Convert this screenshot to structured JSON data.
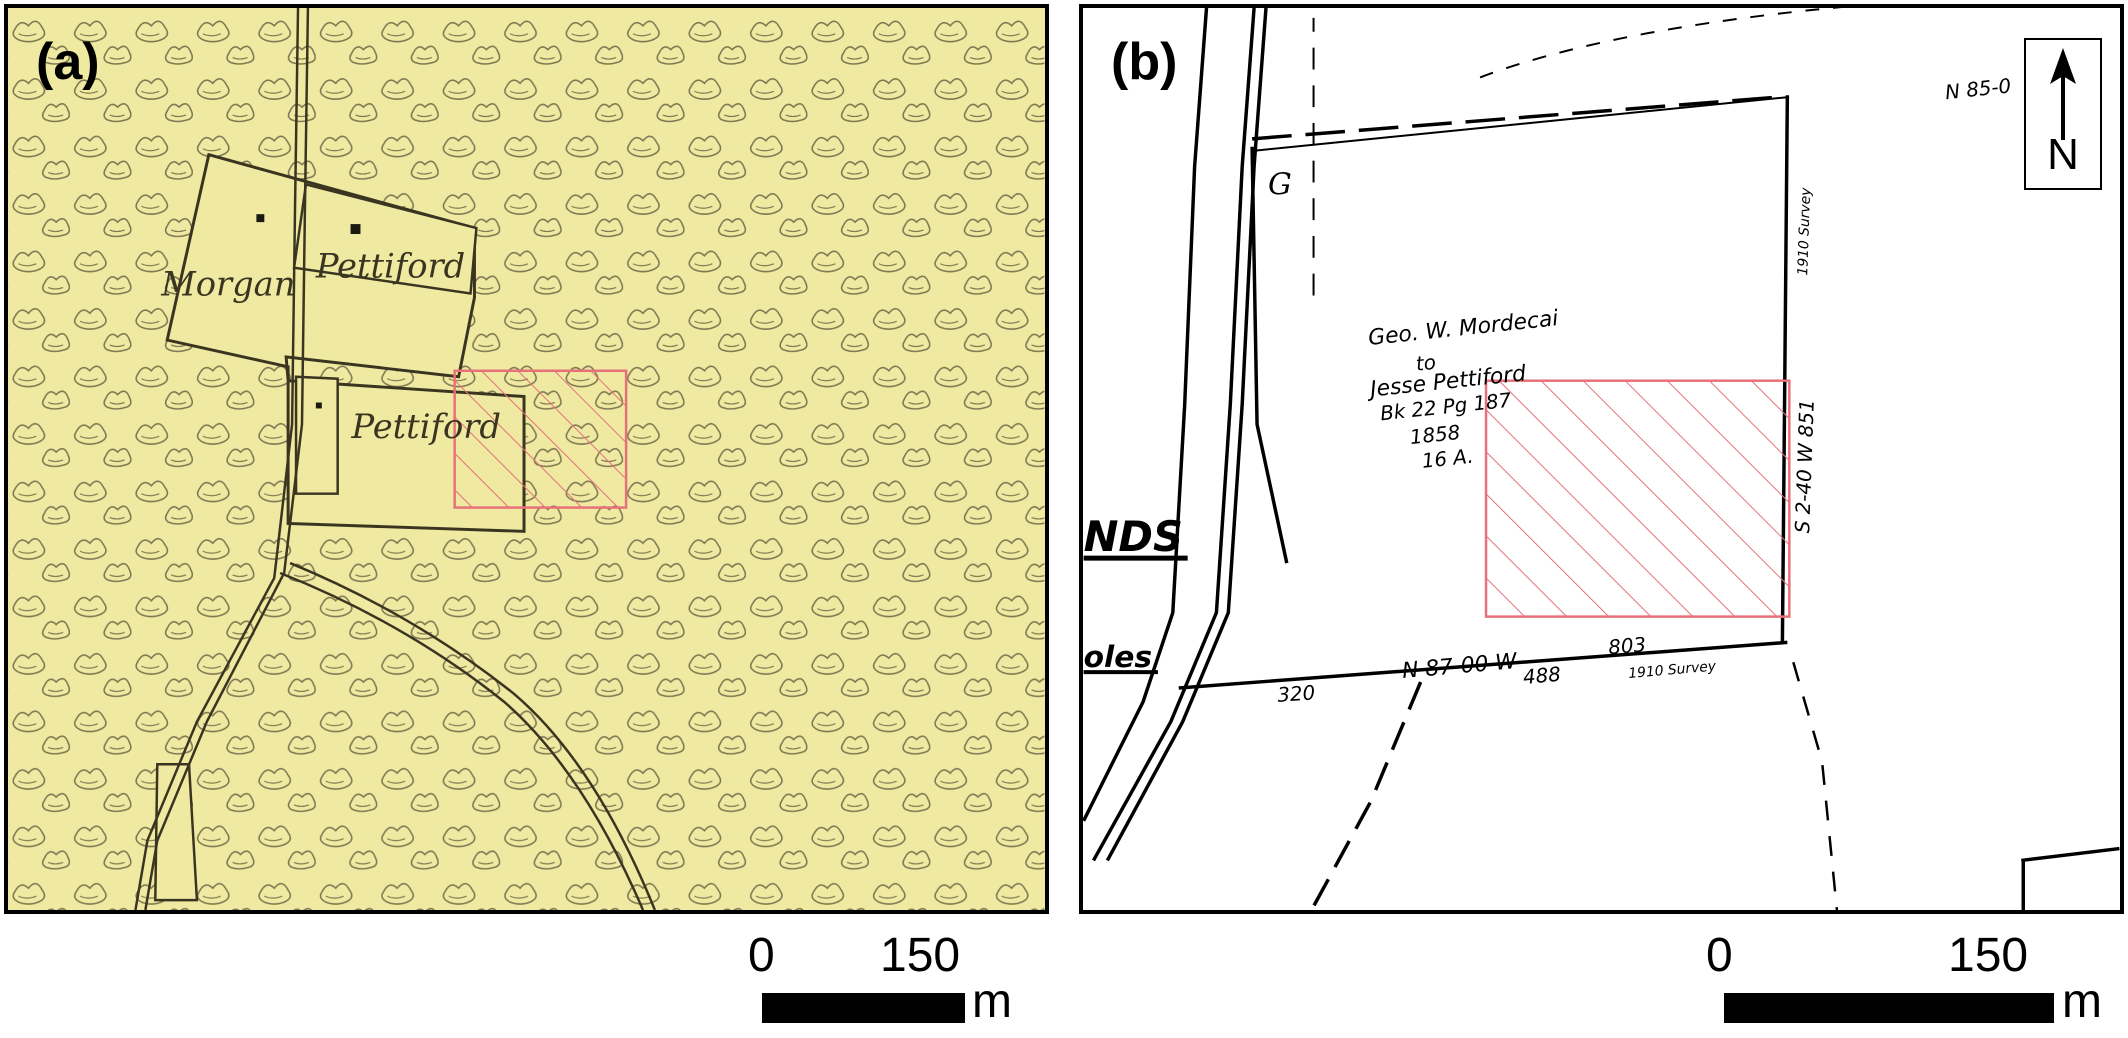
{
  "panels": [
    {
      "label": "(a)",
      "annotations": [
        "Morgan",
        "Pettiford",
        "Pettiford"
      ],
      "scale": {
        "start": "0",
        "end": "150",
        "unit": "m"
      }
    },
    {
      "label": "(b)",
      "annotations": [
        "Geo. W. Mordecai",
        "to",
        "Jesse Pettiford",
        "Bk 22 Pg 187",
        "1858",
        "16 A.",
        "N 87-00 W",
        "803",
        "488",
        "1910 Survey",
        "320",
        "S 2-40 W 851",
        "1910 Survey",
        "N 85-0",
        "NDS",
        "oles"
      ],
      "north_arrow": {
        "letter": "N"
      },
      "scale": {
        "start": "0",
        "end": "150",
        "unit": "m"
      }
    }
  ],
  "colors": {
    "map_background": "#efe9a2",
    "hatch": "#e8707a",
    "ink": "#000000"
  }
}
